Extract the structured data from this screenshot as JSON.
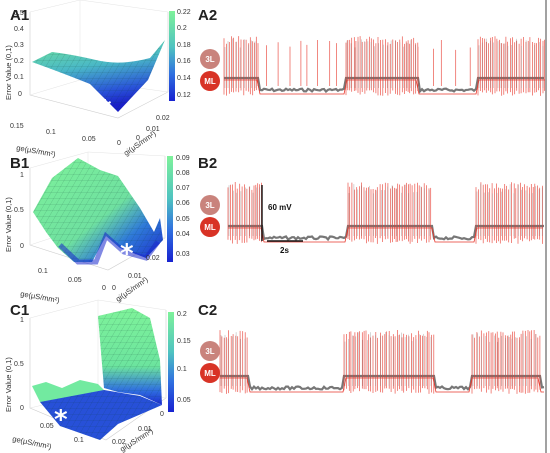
{
  "panels": {
    "A1": "A1",
    "A2": "A2",
    "B1": "B1",
    "B2": "B2",
    "C1": "C1",
    "C2": "C2"
  },
  "surface_axes": {
    "z_label": "Error Value (0,1)",
    "ge_label": "ge(μS/mm²)",
    "gi_label": "gi(μS/mm²)"
  },
  "A1": {
    "z_ticks": [
      "0",
      "0.1",
      "0.2",
      "0.3",
      "0.4",
      "0.5"
    ],
    "ge_ticks": [
      "0.15",
      "0.1",
      "0.05",
      "0"
    ],
    "gi_ticks": [
      "0",
      "0.01",
      "0.02"
    ],
    "colorbar_ticks": [
      "0.22",
      "0.2",
      "0.18",
      "0.16",
      "0.14",
      "0.12"
    ]
  },
  "B1": {
    "z_ticks": [
      "0",
      "0.5",
      "1"
    ],
    "ge_ticks": [
      "0.1",
      "0.05",
      "0"
    ],
    "gi_ticks": [
      "0",
      "0.01",
      "0.02"
    ],
    "colorbar_ticks": [
      "0.09",
      "0.08",
      "0.07",
      "0.06",
      "0.05",
      "0.04",
      "0.03"
    ]
  },
  "C1": {
    "z_ticks": [
      "0",
      "0.5",
      "1"
    ],
    "ge_ticks": [
      "0.05",
      "0.1"
    ],
    "gi_ticks": [
      "0.02",
      "0.01",
      "0"
    ],
    "colorbar_ticks": [
      "0.2",
      "0.15",
      "0.1",
      "0.05"
    ]
  },
  "traces": {
    "badge_3L": "3L",
    "badge_ML": "ML",
    "scale_voltage": "60 mV",
    "scale_time": "2s",
    "colors": {
      "model": "#e8372c",
      "experiment": "#777777",
      "surface_low": "#1a2fd6",
      "surface_high": "#7ef29a"
    }
  }
}
